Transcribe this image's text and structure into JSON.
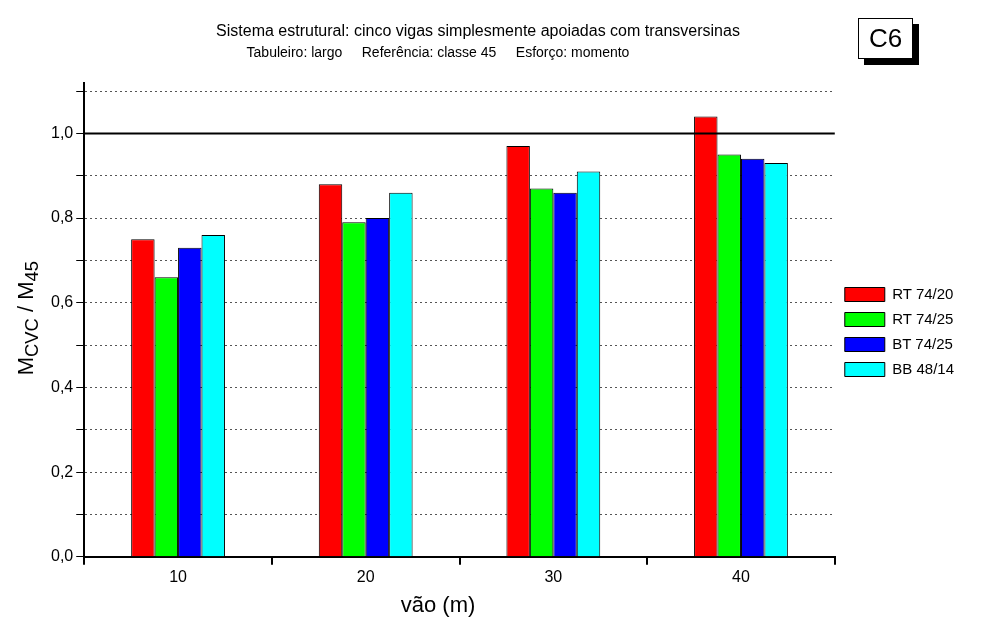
{
  "chart_data": {
    "type": "bar",
    "title": "Sistema estrutural: cinco vigas simplesmente apoiadas com transversinas",
    "subtitle": "Tabuleiro: largo     Referência: classe 45     Esforço: momento",
    "annotations": [
      "C6"
    ],
    "xlabel": "vão (m)",
    "ylabel": "M$_{CVC}$ / M$_{45}$",
    "categories": [
      "10",
      "20",
      "30",
      "40"
    ],
    "series": [
      {
        "name": "RT 74/20",
        "color": "#ff0000",
        "values": [
          0.75,
          0.88,
          0.97,
          1.04
        ]
      },
      {
        "name": "RT 74/25",
        "color": "#00ff00",
        "values": [
          0.66,
          0.79,
          0.87,
          0.95
        ]
      },
      {
        "name": "BT 74/25",
        "color": "#0000ff",
        "values": [
          0.73,
          0.8,
          0.86,
          0.94
        ]
      },
      {
        "name": "BB 48/14",
        "color": "#00ffff",
        "values": [
          0.76,
          0.86,
          0.91,
          0.93
        ]
      }
    ],
    "ylim": [
      0,
      1.12
    ],
    "yticks": [
      {
        "value": 0,
        "label": "0,0"
      },
      {
        "value": 0.1,
        "label": null
      },
      {
        "value": 0.2,
        "label": "0,2"
      },
      {
        "value": 0.3,
        "label": null
      },
      {
        "value": 0.4,
        "label": "0,4"
      },
      {
        "value": 0.5,
        "label": null
      },
      {
        "value": 0.6,
        "label": "0,6"
      },
      {
        "value": 0.7,
        "label": null
      },
      {
        "value": 0.8,
        "label": "0,8"
      },
      {
        "value": 0.9,
        "label": null
      },
      {
        "value": 1.0,
        "label": "1,0"
      },
      {
        "value": 1.1,
        "label": null
      }
    ],
    "ref_lines": [
      {
        "axis": "y",
        "value": 1.0,
        "color": "#000000",
        "line_style": "solid"
      }
    ],
    "grid": "y",
    "line_style": "dotted",
    "legend": "right"
  }
}
